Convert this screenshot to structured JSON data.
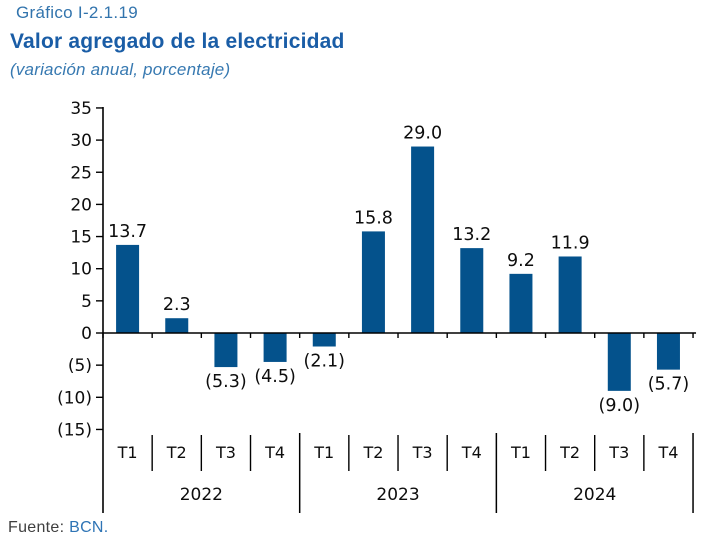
{
  "header": {
    "chart_number": "Gráfico I-2.1.19",
    "title": "Valor agregado de la electricidad",
    "subtitle": "(variación anual, porcentaje)"
  },
  "footer": {
    "source_label": "Fuente:",
    "source_value": "BCN."
  },
  "colors": {
    "bar": "#04528C",
    "chart_number_blue": "#3274AD",
    "title_blue": "#1A5DA6",
    "subtitle_blue": "#3779B1",
    "axis_black": "#000000",
    "source_gray": "#3F3F3F",
    "source_blue": "#2E74B5"
  },
  "chart_data": {
    "type": "bar",
    "title": "Valor agregado de la electricidad",
    "subtitle": "(variación anual, porcentaje)",
    "unit": "percent, annual variation",
    "categories": [
      "2022 T1",
      "2022 T2",
      "2022 T3",
      "2022 T4",
      "2023 T1",
      "2023 T2",
      "2023 T3",
      "2023 T4",
      "2024 T1",
      "2024 T2",
      "2024 T3",
      "2024 T4"
    ],
    "values": [
      13.7,
      2.3,
      -5.3,
      -4.5,
      -2.1,
      15.8,
      29.0,
      13.2,
      9.2,
      11.9,
      -9.0,
      -5.7
    ],
    "value_labels": [
      "13.7",
      "2.3",
      "(5.3)",
      "(4.5)",
      "(2.1)",
      "15.8",
      "29.0",
      "13.2",
      "9.2",
      "11.9",
      "(9.0)",
      "(5.7)"
    ],
    "groups": [
      {
        "year": "2022",
        "quarters": [
          "T1",
          "T2",
          "T3",
          "T4"
        ]
      },
      {
        "year": "2023",
        "quarters": [
          "T1",
          "T2",
          "T3",
          "T4"
        ]
      },
      {
        "year": "2024",
        "quarters": [
          "T1",
          "T2",
          "T3",
          "T4"
        ]
      }
    ],
    "ylim": [
      -15,
      35
    ],
    "ytick_step": 5,
    "yticks": [
      {
        "value": 35,
        "label": "35"
      },
      {
        "value": 30,
        "label": "30"
      },
      {
        "value": 25,
        "label": "25"
      },
      {
        "value": 20,
        "label": "20"
      },
      {
        "value": 15,
        "label": "15"
      },
      {
        "value": 10,
        "label": "10"
      },
      {
        "value": 5,
        "label": "5"
      },
      {
        "value": 0,
        "label": "0"
      },
      {
        "value": -5,
        "label": "(5)"
      },
      {
        "value": -10,
        "label": "(10)"
      },
      {
        "value": -15,
        "label": "(15)"
      }
    ],
    "grid": false,
    "legend": false,
    "negative_format": "parentheses"
  }
}
